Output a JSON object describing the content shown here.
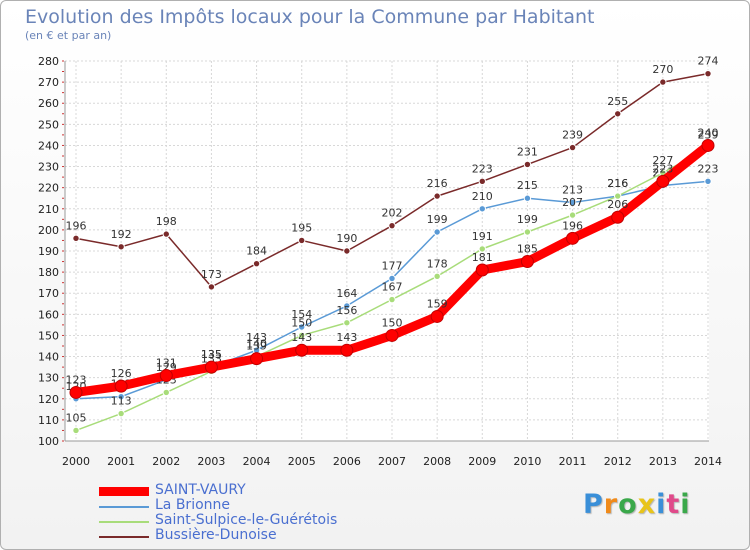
{
  "header": {
    "title": "Evolution des Impôts locaux pour la Commune par Habitant",
    "subtitle": "(en € et par an)"
  },
  "logo": {
    "text": "Proxiti"
  },
  "chart_data": {
    "type": "line",
    "title": "Evolution des Impôts locaux pour la Commune par Habitant",
    "subtitle": "(en € et par an)",
    "xlabel": "",
    "ylabel": "",
    "x": [
      2000,
      2001,
      2002,
      2003,
      2004,
      2005,
      2006,
      2007,
      2008,
      2009,
      2010,
      2011,
      2012,
      2013,
      2014
    ],
    "ylim": [
      100,
      280
    ],
    "yticks": [
      100,
      110,
      120,
      130,
      140,
      150,
      160,
      170,
      180,
      190,
      200,
      210,
      220,
      230,
      240,
      250,
      260,
      270,
      280
    ],
    "grid": true,
    "legend_position": "bottom-left",
    "series": [
      {
        "name": "Bussière-Dunoise",
        "color": "#7a2a2a",
        "values": [
          196,
          192,
          198,
          173,
          184,
          195,
          190,
          202,
          216,
          223,
          231,
          239,
          255,
          270,
          274
        ]
      },
      {
        "name": "La Brionne",
        "color": "#5a9ad6",
        "values": [
          120,
          121,
          129,
          135,
          143,
          154,
          164,
          177,
          199,
          210,
          215,
          213,
          216,
          221,
          223
        ]
      },
      {
        "name": "Saint-Sulpice-le-Guérétois",
        "color": "#a8dc7a",
        "values": [
          105,
          113,
          123,
          133,
          140,
          150,
          156,
          167,
          178,
          191,
          199,
          207,
          216,
          227,
          239
        ]
      },
      {
        "name": "SAINT-VAURY",
        "color": "#ff0000",
        "values": [
          123,
          126,
          131,
          135,
          139,
          143,
          143,
          150,
          159,
          181,
          185,
          196,
          206,
          223,
          240
        ]
      }
    ]
  }
}
